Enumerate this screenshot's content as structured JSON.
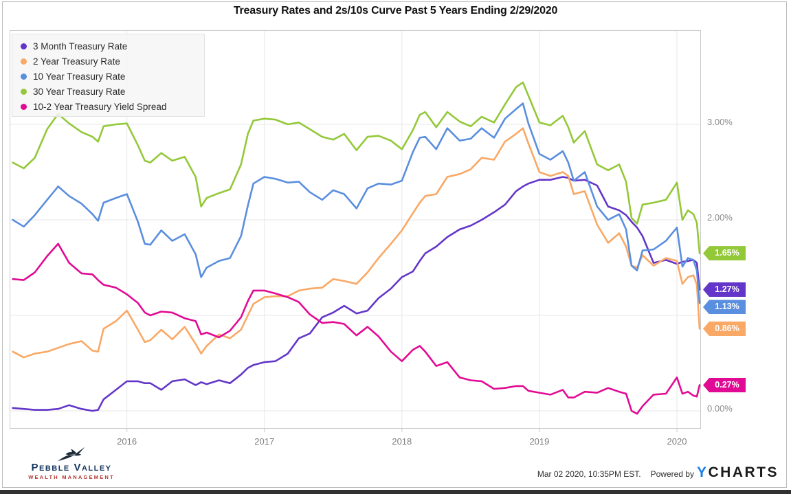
{
  "page": {
    "title": "Treasury Rates and 2s/10s Curve Past 5 Years Ending 2/29/2020",
    "footer": {
      "logo_line1": "Pebble Valley",
      "logo_line2": "WEALTH MANAGEMENT",
      "timestamp": "Mar 02 2020, 10:35PM EST.",
      "powered_by": "Powered by",
      "brand_y": "Y",
      "brand_charts": "CHARTS",
      "brand_y_color": "#1a7ee6",
      "brand_charts_color": "#1b1b1b"
    },
    "colors": {
      "axis_text": "#8c8c8c",
      "grid": "#e7e7e7",
      "frame": "#c9c9c9",
      "legend_bg": "#f6f6f6"
    }
  },
  "chart_data": {
    "type": "line",
    "title": "Treasury Rates and 2s/10s Curve Past 5 Years Ending 2/29/2020",
    "legend_position": "top-left",
    "x_axis": {
      "range": [
        2015.147,
        2020.175
      ],
      "ticks": [
        2016,
        2017,
        2018,
        2019,
        2020
      ],
      "tick_labels": [
        "2016",
        "2017",
        "2018",
        "2019",
        "2020"
      ]
    },
    "y_axis": {
      "side": "right",
      "unit": "%",
      "range": [
        -0.187,
        3.986
      ],
      "gridlines": [
        0,
        1,
        2,
        3
      ],
      "labels": [
        {
          "value": 3.0,
          "text": "3.00%"
        },
        {
          "value": 2.0,
          "text": "2.00%"
        },
        {
          "value": 0.0,
          "text": "0.00%"
        }
      ]
    },
    "x": [
      2015.17,
      2015.25,
      2015.33,
      2015.42,
      2015.5,
      2015.58,
      2015.67,
      2015.75,
      2015.79,
      2015.83,
      2015.92,
      2016.0,
      2016.08,
      2016.13,
      2016.17,
      2016.25,
      2016.33,
      2016.42,
      2016.5,
      2016.54,
      2016.58,
      2016.67,
      2016.75,
      2016.83,
      2016.88,
      2016.92,
      2017.0,
      2017.08,
      2017.17,
      2017.25,
      2017.33,
      2017.42,
      2017.5,
      2017.58,
      2017.67,
      2017.75,
      2017.83,
      2017.92,
      2018.0,
      2018.08,
      2018.13,
      2018.17,
      2018.25,
      2018.33,
      2018.42,
      2018.5,
      2018.58,
      2018.67,
      2018.75,
      2018.83,
      2018.88,
      2018.92,
      2019.0,
      2019.08,
      2019.17,
      2019.21,
      2019.25,
      2019.33,
      2019.42,
      2019.5,
      2019.58,
      2019.63,
      2019.67,
      2019.71,
      2019.75,
      2019.83,
      2019.92,
      2020.0,
      2020.04,
      2020.08,
      2020.12,
      2020.145,
      2020.165
    ],
    "series": [
      {
        "name": "3 Month Treasury Rate",
        "color": "#6336c9",
        "end_label": {
          "text": "1.27%",
          "value": 1.27,
          "dy": 0
        },
        "values": [
          0.03,
          0.02,
          0.01,
          0.01,
          0.02,
          0.06,
          0.02,
          0.0,
          0.01,
          0.12,
          0.22,
          0.31,
          0.31,
          0.29,
          0.29,
          0.22,
          0.31,
          0.33,
          0.27,
          0.3,
          0.28,
          0.32,
          0.29,
          0.38,
          0.45,
          0.48,
          0.51,
          0.52,
          0.6,
          0.76,
          0.81,
          0.98,
          1.03,
          1.1,
          1.02,
          1.05,
          1.18,
          1.28,
          1.4,
          1.46,
          1.57,
          1.65,
          1.72,
          1.82,
          1.9,
          1.94,
          2.0,
          2.08,
          2.16,
          2.3,
          2.35,
          2.38,
          2.42,
          2.42,
          2.45,
          2.44,
          2.41,
          2.42,
          2.36,
          2.14,
          2.1,
          2.05,
          1.98,
          1.92,
          1.83,
          1.55,
          1.58,
          1.54,
          1.56,
          1.57,
          1.58,
          1.55,
          1.27
        ]
      },
      {
        "name": "2 Year Treasury Rate",
        "color": "#f9a865",
        "end_label": {
          "text": "0.86%",
          "value": 0.86,
          "dy": 0
        },
        "values": [
          0.62,
          0.56,
          0.6,
          0.62,
          0.66,
          0.7,
          0.73,
          0.63,
          0.62,
          0.86,
          0.94,
          1.05,
          0.85,
          0.72,
          0.74,
          0.85,
          0.75,
          0.88,
          0.7,
          0.6,
          0.68,
          0.8,
          0.76,
          0.85,
          1.0,
          1.12,
          1.19,
          1.2,
          1.2,
          1.26,
          1.28,
          1.29,
          1.38,
          1.36,
          1.33,
          1.45,
          1.6,
          1.75,
          1.89,
          2.07,
          2.18,
          2.25,
          2.27,
          2.45,
          2.48,
          2.53,
          2.65,
          2.63,
          2.82,
          2.9,
          2.96,
          2.8,
          2.5,
          2.46,
          2.5,
          2.46,
          2.27,
          2.3,
          1.95,
          1.76,
          1.86,
          1.72,
          1.52,
          1.5,
          1.63,
          1.52,
          1.6,
          1.57,
          1.33,
          1.4,
          1.42,
          1.32,
          0.86
        ]
      },
      {
        "name": "10 Year Treasury Rate",
        "color": "#5a8edf",
        "end_label": {
          "text": "1.13%",
          "value": 1.13,
          "dy": 6
        },
        "values": [
          2.0,
          1.93,
          2.05,
          2.21,
          2.35,
          2.25,
          2.17,
          2.06,
          1.99,
          2.18,
          2.23,
          2.27,
          1.98,
          1.75,
          1.74,
          1.89,
          1.78,
          1.85,
          1.64,
          1.4,
          1.5,
          1.57,
          1.6,
          1.83,
          2.15,
          2.38,
          2.45,
          2.43,
          2.39,
          2.4,
          2.29,
          2.21,
          2.31,
          2.27,
          2.12,
          2.33,
          2.38,
          2.37,
          2.41,
          2.71,
          2.86,
          2.87,
          2.74,
          2.96,
          2.83,
          2.85,
          2.96,
          2.86,
          3.06,
          3.16,
          3.22,
          3.01,
          2.69,
          2.63,
          2.72,
          2.6,
          2.41,
          2.5,
          2.14,
          2.0,
          2.06,
          1.9,
          1.52,
          1.47,
          1.68,
          1.69,
          1.78,
          1.92,
          1.51,
          1.6,
          1.58,
          1.47,
          1.13
        ]
      },
      {
        "name": "30 Year Treasury Rate",
        "color": "#93c838",
        "end_label": {
          "text": "1.65%",
          "value": 1.65,
          "dy": 0
        },
        "values": [
          2.6,
          2.54,
          2.65,
          2.95,
          3.11,
          3.01,
          2.92,
          2.87,
          2.82,
          2.98,
          3.0,
          3.01,
          2.78,
          2.62,
          2.6,
          2.7,
          2.62,
          2.66,
          2.45,
          2.14,
          2.23,
          2.28,
          2.32,
          2.58,
          2.9,
          3.04,
          3.06,
          3.05,
          3.0,
          3.02,
          2.95,
          2.87,
          2.84,
          2.9,
          2.73,
          2.87,
          2.88,
          2.83,
          2.74,
          2.94,
          3.1,
          3.13,
          2.97,
          3.13,
          3.03,
          2.98,
          3.08,
          3.02,
          3.21,
          3.39,
          3.44,
          3.3,
          3.02,
          2.99,
          3.09,
          2.97,
          2.81,
          2.93,
          2.58,
          2.52,
          2.58,
          2.4,
          2.02,
          1.96,
          2.16,
          2.18,
          2.21,
          2.39,
          2.0,
          2.1,
          2.06,
          1.97,
          1.65
        ]
      },
      {
        "name": "10-2 Year Treasury Yield Spread",
        "color": "#e10a94",
        "end_label": {
          "text": "0.27%",
          "value": 0.27,
          "dy": 0
        },
        "values": [
          1.38,
          1.37,
          1.45,
          1.62,
          1.75,
          1.55,
          1.44,
          1.43,
          1.37,
          1.32,
          1.29,
          1.22,
          1.13,
          1.03,
          1.0,
          1.04,
          1.03,
          0.97,
          0.94,
          0.8,
          0.82,
          0.77,
          0.84,
          0.98,
          1.15,
          1.26,
          1.26,
          1.23,
          1.19,
          1.14,
          1.01,
          0.92,
          0.93,
          0.91,
          0.79,
          0.88,
          0.78,
          0.62,
          0.52,
          0.64,
          0.68,
          0.62,
          0.47,
          0.51,
          0.35,
          0.32,
          0.31,
          0.23,
          0.24,
          0.26,
          0.26,
          0.21,
          0.19,
          0.17,
          0.22,
          0.14,
          0.14,
          0.2,
          0.19,
          0.24,
          0.2,
          0.18,
          0.0,
          -0.03,
          0.05,
          0.17,
          0.18,
          0.35,
          0.18,
          0.2,
          0.16,
          0.15,
          0.27
        ]
      }
    ]
  }
}
